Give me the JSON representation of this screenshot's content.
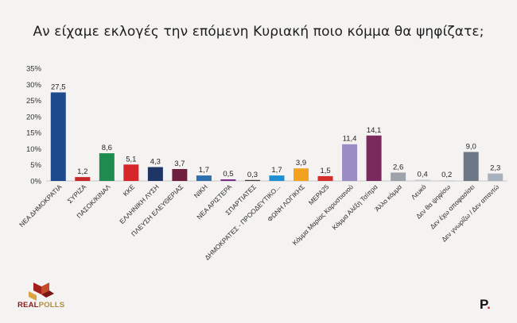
{
  "title": "Αν είχαμε εκλογές την επόμενη Κυριακή ποιο κόμμα θα ψηφίζατε;",
  "brand": {
    "logo_text": "REAL",
    "logo_text2": "POLLS",
    "mark": "P",
    "mark_dot": "."
  },
  "chart_data": {
    "type": "bar",
    "ylim": [
      0,
      35
    ],
    "yticks": [
      "0%",
      "5%",
      "10%",
      "15%",
      "20%",
      "25%",
      "30%",
      "35%"
    ],
    "grid": false,
    "categories": [
      "ΝΕΑ ΔΗΜΟΚΡΑΤΙΑ",
      "ΣΥΡΙΖΑ",
      "ΠΑΣΟΚ/ΚΙΝΑΛ",
      "ΚΚΕ",
      "ΕΛΛΗΝΙΚΗ ΛΥΣΗ",
      "ΠΛΕΥΣΗ ΕΛΕΥΘΕΡΙΑΣ",
      "ΝΙΚΗ",
      "ΝΕΑ ΑΡΙΣΤΕΡΑ",
      "ΣΠΑΡΤΙΑΤΕΣ",
      "ΔΗΜΟΚΡΑΤΕΣ - ΠΡΟΟΔΕΥΤΙΚΟ...",
      "ΦΩΝΗ ΛΟΓΙΚΗΣ",
      "ΜΕΡΑ25",
      "Κόμμα Μαρίας Καρυστιανού",
      "Κόμμα Αλέξη Τσίπρα",
      "Άλλο κόμμα",
      "Λευκό",
      "Δεν θα ψηφίσω",
      "Δεν έχω αποφασίσει",
      "Δεν γνωρίζω / Δεν απαντώ"
    ],
    "values": [
      27.5,
      1.2,
      8.6,
      5.1,
      4.3,
      3.7,
      1.7,
      0.5,
      0.3,
      1.7,
      3.9,
      1.5,
      11.4,
      14.1,
      2.6,
      0.4,
      0.2,
      9.0,
      2.3
    ],
    "labels": [
      "27,5",
      "1,2",
      "8,6",
      "5,1",
      "4,3",
      "3,7",
      "1,7",
      "0,5",
      "0,3",
      "1,7",
      "3,9",
      "1,5",
      "11,4",
      "14,1",
      "2,6",
      "0,4",
      "0,2",
      "9,0",
      "2,3"
    ],
    "colors": [
      "#1c4a8c",
      "#c62828",
      "#1e8c4e",
      "#d8252a",
      "#1f3566",
      "#6e1f3f",
      "#2d6fad",
      "#7a2e8c",
      "#3a3a3a",
      "#1e8fd0",
      "#f2a21f",
      "#d32f2f",
      "#9b8cc4",
      "#7b2a5e",
      "#9ea3ab",
      "#c9ccd1",
      "#c9ccd1",
      "#6e7786",
      "#a8b0bd"
    ]
  }
}
